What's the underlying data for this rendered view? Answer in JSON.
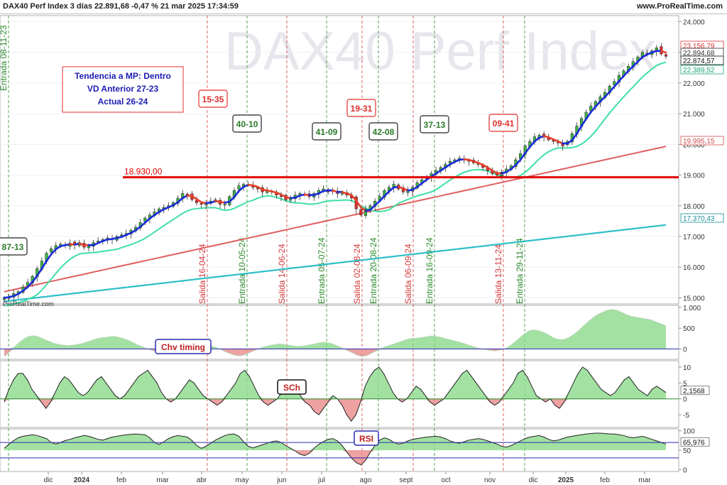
{
  "header": {
    "title": "DAX40 Perf Index 3 días 22.891,68 -0,47 % 21 mar 2025 17:34:59",
    "site": "www.ProRealTime.com"
  },
  "watermark": "DAX40 Perf Index",
  "copyright": "ProRealTime.com",
  "info_box": {
    "lines": [
      "Tendencia a MP: Dentro",
      "VD Anterior 27-23",
      "Actual 26-24"
    ]
  },
  "colors": {
    "up": "#3db540",
    "down": "#e0302f",
    "trend_up": "#1a2bd8",
    "trend_down": "#e2402a",
    "ma_fast": "#3ee0a2",
    "ma_mid": "#e06060",
    "ma_slow": "#2fbfc8",
    "support": "#e00000"
  },
  "chart_data": [
    {
      "type": "candlestick",
      "title": "DAX40 Perf Index 3 días",
      "ylim": [
        14800,
        24200
      ],
      "y_ticks": [
        "24.000",
        "23.000",
        "22.000",
        "21.000",
        "20.000",
        "19.000",
        "18.000",
        "17.000",
        "16.000",
        "15.000"
      ],
      "x_ticks": [
        "dic",
        "2024",
        "feb",
        "mar",
        "abr",
        "may",
        "jun",
        "jul",
        "ago",
        "sept",
        "oct",
        "nov",
        "dic",
        "2025",
        "feb",
        "mar"
      ],
      "price_labels": {
        "upper_band": "23.156,79",
        "last_price": "22.874,57",
        "covered_label": "22.894,68",
        "fast_ma": "22.389,52",
        "mid_ma": "19.995,15",
        "slow_ma": "17.370,43"
      },
      "support_level": {
        "value": 18930,
        "label": "18.930,00"
      },
      "signal_labels": [
        {
          "text": "87-13",
          "kind": "entry"
        },
        {
          "text": "15-35",
          "kind": "exit"
        },
        {
          "text": "40-10",
          "kind": "entry"
        },
        {
          "text": "41-09",
          "kind": "entry"
        },
        {
          "text": "19-31",
          "kind": "exit"
        },
        {
          "text": "42-08",
          "kind": "entry"
        },
        {
          "text": "37-13",
          "kind": "entry"
        },
        {
          "text": "09-41",
          "kind": "exit"
        }
      ],
      "vertical_events": [
        {
          "text": "Entrada 08-11-23",
          "kind": "entry"
        },
        {
          "text": "Salida 16-04-24",
          "kind": "exit"
        },
        {
          "text": "Entrada 10-05-24",
          "kind": "entry"
        },
        {
          "text": "Salida 14-06-24",
          "kind": "exit"
        },
        {
          "text": "Entrada 05-07-24",
          "kind": "entry"
        },
        {
          "text": "Salida 02-08-24",
          "kind": "exit"
        },
        {
          "text": "Entrada 20-08-24",
          "kind": "entry"
        },
        {
          "text": "Salida 06-09-24",
          "kind": "exit"
        },
        {
          "text": "Entrada 16-09-24",
          "kind": "entry"
        },
        {
          "text": "Salida 13-11-24",
          "kind": "exit"
        },
        {
          "text": "Entrada 29-11-24",
          "kind": "entry"
        }
      ],
      "close": [
        15000,
        15040,
        15140,
        15200,
        15350,
        15500,
        15700,
        15950,
        16200,
        16450,
        16600,
        16700,
        16750,
        16700,
        16780,
        16720,
        16800,
        16650,
        16700,
        16800,
        16850,
        16900,
        16950,
        16900,
        17000,
        17050,
        17100,
        17200,
        17300,
        17450,
        17600,
        17700,
        17800,
        17900,
        17950,
        18000,
        18100,
        18250,
        18400,
        18350,
        18200,
        18100,
        18050,
        18100,
        18150,
        18200,
        18050,
        18050,
        18300,
        18500,
        18650,
        18700,
        18700,
        18600,
        18550,
        18450,
        18500,
        18450,
        18350,
        18300,
        18200,
        18250,
        18350,
        18400,
        18350,
        18300,
        18400,
        18500,
        18550,
        18450,
        18500,
        18400,
        18450,
        18350,
        18250,
        17900,
        17700,
        17900,
        18000,
        18150,
        18300,
        18500,
        18600,
        18700,
        18550,
        18450,
        18500,
        18600,
        18750,
        18850,
        18950,
        19050,
        19150,
        19250,
        19350,
        19450,
        19500,
        19550,
        19500,
        19450,
        19400,
        19350,
        19250,
        19150,
        19050,
        19000,
        19100,
        19200,
        19300,
        19500,
        19700,
        19950,
        20100,
        20250,
        20300,
        20250,
        20150,
        20100,
        20050,
        19950,
        20100,
        20350,
        20600,
        20850,
        21050,
        21250,
        21400,
        21550,
        21700,
        21900,
        22050,
        22250,
        22400,
        22550,
        22700,
        22850,
        23000,
        22950,
        23050,
        23150,
        22950,
        22875
      ]
    },
    {
      "type": "area",
      "title": "Chv timing",
      "ylim": [
        -250,
        1050
      ],
      "y_ticks": [
        "1.000",
        "500",
        "0"
      ],
      "values": [
        -180,
        -80,
        40,
        150,
        240,
        300,
        320,
        290,
        240,
        190,
        140,
        110,
        90,
        80,
        90,
        110,
        130,
        170,
        210,
        250,
        270,
        280,
        300,
        290,
        260,
        220,
        170,
        110,
        60,
        10,
        -30,
        -60,
        -40,
        0,
        40,
        80,
        130,
        170,
        200,
        190,
        160,
        120,
        80,
        40,
        0,
        -60,
        -110,
        -150,
        -170,
        -140,
        -90,
        -40,
        10,
        50,
        80,
        100,
        120,
        110,
        90,
        70,
        60,
        70,
        90,
        110,
        140,
        160,
        150,
        120,
        70,
        20,
        -40,
        -90,
        -150,
        -180,
        -160,
        -100,
        -40,
        20,
        60,
        100,
        140,
        180,
        220,
        250,
        260,
        270,
        290,
        310,
        300,
        280,
        250,
        220,
        190,
        160,
        120,
        80,
        40,
        10,
        -10,
        -30,
        -50,
        -30,
        0,
        60,
        150,
        250,
        350,
        430,
        460,
        440,
        400,
        340,
        270,
        230,
        220,
        260,
        330,
        420,
        530,
        640,
        740,
        820,
        880,
        930,
        950,
        930,
        880,
        820,
        780,
        760,
        740,
        720,
        700,
        650,
        600,
        560
      ]
    },
    {
      "type": "area",
      "title": "SCh",
      "ylim": [
        -9,
        12
      ],
      "y_ticks": [
        "10",
        "5",
        "0",
        "-5"
      ],
      "last_label": "2,1568",
      "values": [
        -1,
        3,
        6,
        8,
        8,
        6,
        3,
        1,
        -1,
        -3,
        -1,
        2,
        5,
        7,
        6,
        4,
        2,
        1,
        2,
        4,
        6,
        7,
        5,
        3,
        1,
        0,
        1,
        3,
        5,
        7,
        8,
        9,
        7,
        5,
        2,
        0,
        -1,
        0,
        2,
        4,
        6,
        5,
        3,
        1,
        0,
        -1,
        -2,
        -1,
        1,
        3,
        5,
        8,
        9,
        7,
        4,
        1,
        -1,
        -2,
        -1,
        0,
        2,
        4,
        5,
        3,
        1,
        -1,
        -2,
        -4,
        -5,
        -3,
        -1,
        1,
        0,
        -2,
        -5,
        -7,
        -5,
        -1,
        4,
        7,
        9,
        10,
        8,
        5,
        2,
        0,
        -1,
        0,
        2,
        4,
        3,
        1,
        -1,
        -2,
        -1,
        0,
        2,
        4,
        6,
        8,
        9,
        7,
        5,
        3,
        1,
        -1,
        -2,
        -1,
        1,
        3,
        5,
        8,
        9,
        7,
        4,
        1,
        0,
        -1,
        0,
        -2,
        -3,
        -1,
        2,
        5,
        8,
        10,
        9,
        7,
        5,
        3,
        2,
        1,
        2,
        4,
        6,
        7,
        5,
        3,
        2,
        1,
        3,
        4,
        3,
        2
      ]
    },
    {
      "type": "line",
      "title": "RSI",
      "ylim": [
        -5,
        105
      ],
      "y_ticks": [
        "100",
        "50",
        "0"
      ],
      "last_label": "65,976",
      "values": [
        55,
        65,
        75,
        82,
        86,
        88,
        90,
        88,
        84,
        80,
        70,
        66,
        70,
        75,
        78,
        82,
        85,
        88,
        86,
        82,
        78,
        76,
        80,
        84,
        86,
        88,
        90,
        91,
        92,
        91,
        90,
        82,
        70,
        65,
        72,
        80,
        85,
        88,
        86,
        84,
        75,
        62,
        55,
        60,
        68,
        76,
        82,
        88,
        91,
        92,
        86,
        72,
        60,
        56,
        60,
        64,
        68,
        72,
        74,
        70,
        62,
        55,
        48,
        40,
        36,
        42,
        55,
        65,
        72,
        78,
        80,
        74,
        62,
        45,
        30,
        18,
        12,
        24,
        45,
        62,
        76,
        82,
        78,
        70,
        66,
        68,
        74,
        78,
        80,
        82,
        84,
        85,
        86,
        84,
        80,
        74,
        70,
        68,
        72,
        76,
        78,
        80,
        78,
        74,
        70,
        66,
        60,
        58,
        62,
        68,
        74,
        80,
        84,
        86,
        88,
        84,
        78,
        74,
        76,
        80,
        84,
        86,
        88,
        90,
        92,
        93,
        94,
        94,
        93,
        92,
        92,
        90,
        88,
        84,
        82,
        84,
        86,
        82,
        78,
        74,
        70,
        66
      ]
    }
  ]
}
